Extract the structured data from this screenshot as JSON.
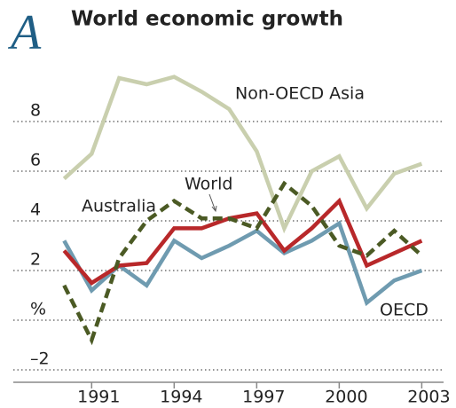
{
  "chart_data": {
    "type": "line",
    "panel_label": "A",
    "title": "World economic growth",
    "x": [
      1990,
      1991,
      1992,
      1993,
      1994,
      1995,
      1996,
      1997,
      1998,
      1999,
      2000,
      2001,
      2002,
      2003
    ],
    "series": [
      {
        "name": "Non-OECD Asia",
        "color": "#c9cfae",
        "values": [
          5.7,
          6.7,
          9.75,
          9.5,
          9.8,
          9.2,
          8.5,
          6.8,
          3.7,
          6.0,
          6.6,
          4.5,
          5.9,
          6.3
        ]
      },
      {
        "name": "OECD",
        "color": "#6f9bb0",
        "values": [
          3.2,
          1.2,
          2.2,
          1.4,
          3.2,
          2.5,
          3.0,
          3.6,
          2.7,
          3.2,
          3.9,
          0.7,
          1.6,
          2.0
        ]
      },
      {
        "name": "World",
        "color": "#b8282a",
        "values": [
          2.8,
          1.5,
          2.2,
          2.3,
          3.7,
          3.7,
          4.1,
          4.3,
          2.8,
          3.7,
          4.8,
          2.2,
          2.7,
          3.2
        ]
      },
      {
        "name": "Australia",
        "color": "#4b5a24",
        "dashed": true,
        "values": [
          1.4,
          -0.8,
          2.5,
          4.0,
          4.8,
          4.1,
          4.1,
          3.7,
          5.5,
          4.6,
          3.0,
          2.6,
          3.6,
          2.6
        ]
      }
    ],
    "xlim": [
      1989.7,
      2003.6
    ],
    "xticks": [
      1991,
      1994,
      1997,
      2000,
      2003
    ],
    "ylim": [
      -2.5,
      10
    ],
    "yticks": [
      {
        "value": -2,
        "label": "–2"
      },
      {
        "value": 0,
        "label": "%"
      },
      2,
      4,
      6,
      8
    ],
    "grid": true
  }
}
